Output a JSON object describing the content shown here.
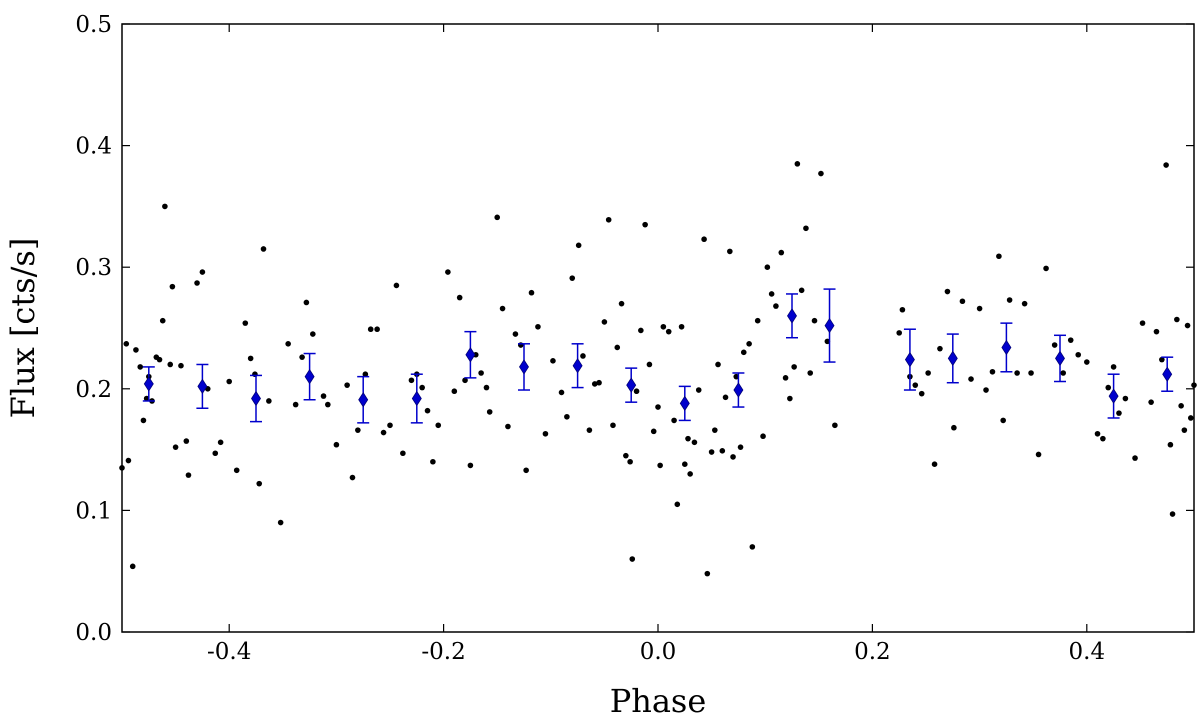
{
  "chart_data": {
    "type": "scatter",
    "title": "",
    "xlabel": "Phase",
    "ylabel": "Flux [cts/s]",
    "xlim": [
      -0.5,
      0.5
    ],
    "ylim": [
      0.0,
      0.5
    ],
    "x_ticks": [
      -0.4,
      -0.2,
      0.0,
      0.2,
      0.4
    ],
    "x_tick_labels": [
      "-0.4",
      "-0.2",
      "0.0",
      "0.2",
      "0.4"
    ],
    "y_ticks": [
      0.0,
      0.1,
      0.2,
      0.3,
      0.4,
      0.5
    ],
    "y_tick_labels": [
      "0.0",
      "0.1",
      "0.2",
      "0.3",
      "0.4",
      "0.5"
    ],
    "grid": false,
    "legend": "none",
    "series": [
      {
        "kind": "scatter",
        "color": "#000000",
        "marker": "dot",
        "points": [
          [
            -0.5,
            0.135
          ],
          [
            -0.496,
            0.237
          ],
          [
            -0.494,
            0.141
          ],
          [
            -0.49,
            0.054
          ],
          [
            -0.487,
            0.232
          ],
          [
            -0.483,
            0.218
          ],
          [
            -0.48,
            0.174
          ],
          [
            -0.477,
            0.192
          ],
          [
            -0.475,
            0.21
          ],
          [
            -0.472,
            0.19
          ],
          [
            -0.468,
            0.226
          ],
          [
            -0.465,
            0.224
          ],
          [
            -0.462,
            0.256
          ],
          [
            -0.46,
            0.35
          ],
          [
            -0.455,
            0.22
          ],
          [
            -0.453,
            0.284
          ],
          [
            -0.45,
            0.152
          ],
          [
            -0.445,
            0.219
          ],
          [
            -0.44,
            0.157
          ],
          [
            -0.438,
            0.129
          ],
          [
            -0.43,
            0.287
          ],
          [
            -0.425,
            0.296
          ],
          [
            -0.42,
            0.2
          ],
          [
            -0.413,
            0.147
          ],
          [
            -0.408,
            0.156
          ],
          [
            -0.4,
            0.206
          ],
          [
            -0.393,
            0.133
          ],
          [
            -0.385,
            0.254
          ],
          [
            -0.38,
            0.225
          ],
          [
            -0.376,
            0.212
          ],
          [
            -0.372,
            0.122
          ],
          [
            -0.368,
            0.315
          ],
          [
            -0.363,
            0.19
          ],
          [
            -0.352,
            0.09
          ],
          [
            -0.345,
            0.237
          ],
          [
            -0.338,
            0.187
          ],
          [
            -0.332,
            0.226
          ],
          [
            -0.328,
            0.271
          ],
          [
            -0.322,
            0.245
          ],
          [
            -0.312,
            0.194
          ],
          [
            -0.308,
            0.187
          ],
          [
            -0.3,
            0.154
          ],
          [
            -0.29,
            0.203
          ],
          [
            -0.285,
            0.127
          ],
          [
            -0.28,
            0.166
          ],
          [
            -0.273,
            0.212
          ],
          [
            -0.268,
            0.249
          ],
          [
            -0.262,
            0.249
          ],
          [
            -0.256,
            0.164
          ],
          [
            -0.25,
            0.17
          ],
          [
            -0.244,
            0.285
          ],
          [
            -0.238,
            0.147
          ],
          [
            -0.23,
            0.207
          ],
          [
            -0.225,
            0.212
          ],
          [
            -0.22,
            0.201
          ],
          [
            -0.215,
            0.182
          ],
          [
            -0.21,
            0.14
          ],
          [
            -0.205,
            0.17
          ],
          [
            -0.196,
            0.296
          ],
          [
            -0.19,
            0.198
          ],
          [
            -0.185,
            0.275
          ],
          [
            -0.18,
            0.207
          ],
          [
            -0.175,
            0.137
          ],
          [
            -0.17,
            0.228
          ],
          [
            -0.165,
            0.213
          ],
          [
            -0.16,
            0.201
          ],
          [
            -0.157,
            0.181
          ],
          [
            -0.15,
            0.341
          ],
          [
            -0.145,
            0.266
          ],
          [
            -0.14,
            0.169
          ],
          [
            -0.133,
            0.245
          ],
          [
            -0.128,
            0.236
          ],
          [
            -0.123,
            0.133
          ],
          [
            -0.118,
            0.279
          ],
          [
            -0.112,
            0.251
          ],
          [
            -0.105,
            0.163
          ],
          [
            -0.098,
            0.223
          ],
          [
            -0.09,
            0.197
          ],
          [
            -0.085,
            0.177
          ],
          [
            -0.08,
            0.291
          ],
          [
            -0.074,
            0.318
          ],
          [
            -0.07,
            0.227
          ],
          [
            -0.064,
            0.166
          ],
          [
            -0.059,
            0.204
          ],
          [
            -0.055,
            0.205
          ],
          [
            -0.05,
            0.255
          ],
          [
            -0.046,
            0.339
          ],
          [
            -0.042,
            0.17
          ],
          [
            -0.038,
            0.234
          ],
          [
            -0.034,
            0.27
          ],
          [
            -0.03,
            0.145
          ],
          [
            -0.026,
            0.14
          ],
          [
            -0.024,
            0.06
          ],
          [
            -0.02,
            0.198
          ],
          [
            -0.016,
            0.248
          ],
          [
            -0.012,
            0.335
          ],
          [
            -0.008,
            0.22
          ],
          [
            -0.004,
            0.165
          ],
          [
            0.0,
            0.185
          ],
          [
            0.002,
            0.137
          ],
          [
            0.005,
            0.251
          ],
          [
            0.01,
            0.247
          ],
          [
            0.015,
            0.174
          ],
          [
            0.018,
            0.105
          ],
          [
            0.022,
            0.251
          ],
          [
            0.025,
            0.138
          ],
          [
            0.028,
            0.159
          ],
          [
            0.03,
            0.13
          ],
          [
            0.034,
            0.156
          ],
          [
            0.038,
            0.199
          ],
          [
            0.043,
            0.323
          ],
          [
            0.046,
            0.048
          ],
          [
            0.05,
            0.148
          ],
          [
            0.053,
            0.166
          ],
          [
            0.056,
            0.22
          ],
          [
            0.06,
            0.149
          ],
          [
            0.063,
            0.193
          ],
          [
            0.067,
            0.313
          ],
          [
            0.07,
            0.144
          ],
          [
            0.073,
            0.21
          ],
          [
            0.077,
            0.152
          ],
          [
            0.08,
            0.23
          ],
          [
            0.085,
            0.237
          ],
          [
            0.088,
            0.07
          ],
          [
            0.093,
            0.256
          ],
          [
            0.098,
            0.161
          ],
          [
            0.102,
            0.3
          ],
          [
            0.106,
            0.278
          ],
          [
            0.11,
            0.268
          ],
          [
            0.115,
            0.312
          ],
          [
            0.119,
            0.209
          ],
          [
            0.123,
            0.192
          ],
          [
            0.127,
            0.218
          ],
          [
            0.13,
            0.385
          ],
          [
            0.134,
            0.281
          ],
          [
            0.138,
            0.332
          ],
          [
            0.142,
            0.213
          ],
          [
            0.146,
            0.256
          ],
          [
            0.152,
            0.377
          ],
          [
            0.158,
            0.239
          ],
          [
            0.165,
            0.17
          ],
          [
            0.225,
            0.246
          ],
          [
            0.228,
            0.265
          ],
          [
            0.235,
            0.21
          ],
          [
            0.24,
            0.203
          ],
          [
            0.246,
            0.196
          ],
          [
            0.252,
            0.213
          ],
          [
            0.258,
            0.138
          ],
          [
            0.263,
            0.233
          ],
          [
            0.27,
            0.28
          ],
          [
            0.276,
            0.168
          ],
          [
            0.284,
            0.272
          ],
          [
            0.292,
            0.208
          ],
          [
            0.3,
            0.266
          ],
          [
            0.306,
            0.199
          ],
          [
            0.312,
            0.214
          ],
          [
            0.318,
            0.309
          ],
          [
            0.322,
            0.174
          ],
          [
            0.328,
            0.273
          ],
          [
            0.335,
            0.213
          ],
          [
            0.342,
            0.27
          ],
          [
            0.348,
            0.213
          ],
          [
            0.355,
            0.146
          ],
          [
            0.362,
            0.299
          ],
          [
            0.37,
            0.236
          ],
          [
            0.378,
            0.213
          ],
          [
            0.385,
            0.24
          ],
          [
            0.392,
            0.228
          ],
          [
            0.4,
            0.222
          ],
          [
            0.41,
            0.163
          ],
          [
            0.415,
            0.159
          ],
          [
            0.42,
            0.201
          ],
          [
            0.425,
            0.218
          ],
          [
            0.43,
            0.18
          ],
          [
            0.436,
            0.192
          ],
          [
            0.445,
            0.143
          ],
          [
            0.452,
            0.254
          ],
          [
            0.46,
            0.189
          ],
          [
            0.465,
            0.247
          ],
          [
            0.47,
            0.224
          ],
          [
            0.474,
            0.384
          ],
          [
            0.478,
            0.154
          ],
          [
            0.48,
            0.097
          ],
          [
            0.484,
            0.257
          ],
          [
            0.488,
            0.186
          ],
          [
            0.491,
            0.166
          ],
          [
            0.494,
            0.252
          ],
          [
            0.497,
            0.176
          ],
          [
            0.5,
            0.203
          ]
        ]
      },
      {
        "kind": "errorbar",
        "color": "#0000cc",
        "marker": "diamond",
        "points": [
          {
            "x": -0.475,
            "y": 0.204,
            "err": 0.014
          },
          {
            "x": -0.425,
            "y": 0.202,
            "err": 0.018
          },
          {
            "x": -0.375,
            "y": 0.192,
            "err": 0.019
          },
          {
            "x": -0.325,
            "y": 0.21,
            "err": 0.019
          },
          {
            "x": -0.275,
            "y": 0.191,
            "err": 0.019
          },
          {
            "x": -0.225,
            "y": 0.192,
            "err": 0.02
          },
          {
            "x": -0.175,
            "y": 0.228,
            "err": 0.019
          },
          {
            "x": -0.125,
            "y": 0.218,
            "err": 0.019
          },
          {
            "x": -0.075,
            "y": 0.219,
            "err": 0.018
          },
          {
            "x": -0.025,
            "y": 0.203,
            "err": 0.014
          },
          {
            "x": 0.025,
            "y": 0.188,
            "err": 0.014
          },
          {
            "x": 0.075,
            "y": 0.199,
            "err": 0.014
          },
          {
            "x": 0.125,
            "y": 0.26,
            "err": 0.018
          },
          {
            "x": 0.16,
            "y": 0.252,
            "err": 0.03
          },
          {
            "x": 0.235,
            "y": 0.224,
            "err": 0.025
          },
          {
            "x": 0.275,
            "y": 0.225,
            "err": 0.02
          },
          {
            "x": 0.325,
            "y": 0.234,
            "err": 0.02
          },
          {
            "x": 0.375,
            "y": 0.225,
            "err": 0.019
          },
          {
            "x": 0.425,
            "y": 0.194,
            "err": 0.018
          },
          {
            "x": 0.475,
            "y": 0.212,
            "err": 0.014
          }
        ]
      }
    ]
  }
}
